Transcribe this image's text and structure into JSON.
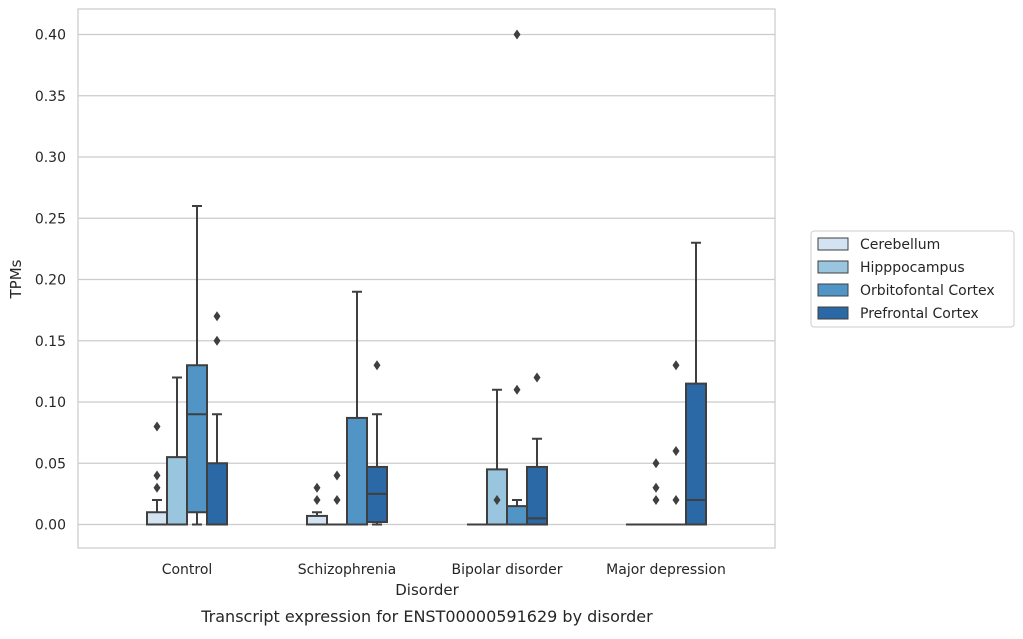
{
  "chart_data": {
    "type": "boxplot",
    "caption": "Transcript expression for ENST00000591629 by disorder",
    "xlabel": "Disorder",
    "ylabel": "TPMs",
    "ylim": [
      -0.02,
      0.42
    ],
    "yticks": [
      "0.00",
      "0.05",
      "0.10",
      "0.15",
      "0.20",
      "0.25",
      "0.30",
      "0.35",
      "0.40"
    ],
    "grid": "horizontal",
    "legend_position": "right",
    "categories": [
      "Control",
      "Schizophrenia",
      "Bipolar disorder",
      "Major depression"
    ],
    "series": [
      {
        "name": "Cerebellum",
        "color": "#d3e3f1",
        "boxes": [
          {
            "min": 0.0,
            "q1": 0.0,
            "median": 0.0,
            "q3": 0.01,
            "max": 0.02,
            "outliers": [
              0.03,
              0.04,
              0.08
            ]
          },
          {
            "min": 0.0,
            "q1": 0.0,
            "median": 0.0,
            "q3": 0.007,
            "max": 0.01,
            "outliers": [
              0.02,
              0.03
            ]
          },
          {
            "min": 0.0,
            "q1": 0.0,
            "median": 0.0,
            "q3": 0.0,
            "max": 0.0,
            "outliers": []
          },
          {
            "min": 0.0,
            "q1": 0.0,
            "median": 0.0,
            "q3": 0.0,
            "max": 0.0,
            "outliers": []
          }
        ]
      },
      {
        "name": "Hipppocampus",
        "color": "#9ac5df",
        "boxes": [
          {
            "min": 0.0,
            "q1": 0.0,
            "median": 0.0,
            "q3": 0.055,
            "max": 0.12,
            "outliers": []
          },
          {
            "min": 0.0,
            "q1": 0.0,
            "median": 0.0,
            "q3": 0.0,
            "max": 0.0,
            "outliers": [
              0.02,
              0.04
            ]
          },
          {
            "min": 0.0,
            "q1": 0.0,
            "median": 0.0,
            "q3": 0.045,
            "max": 0.11,
            "outliers": [
              0.02
            ]
          },
          {
            "min": 0.0,
            "q1": 0.0,
            "median": 0.0,
            "q3": 0.0,
            "max": 0.0,
            "outliers": [
              0.02,
              0.03,
              0.05
            ]
          }
        ]
      },
      {
        "name": "Orbitofontal Cortex",
        "color": "#5195c7",
        "boxes": [
          {
            "min": 0.0,
            "q1": 0.01,
            "median": 0.09,
            "q3": 0.13,
            "max": 0.26,
            "outliers": []
          },
          {
            "min": 0.0,
            "q1": 0.0,
            "median": 0.0,
            "q3": 0.087,
            "max": 0.19,
            "outliers": []
          },
          {
            "min": 0.0,
            "q1": 0.0,
            "median": 0.0,
            "q3": 0.015,
            "max": 0.02,
            "outliers": [
              0.11,
              0.4
            ]
          },
          {
            "min": 0.0,
            "q1": 0.0,
            "median": 0.0,
            "q3": 0.0,
            "max": 0.0,
            "outliers": [
              0.02,
              0.06,
              0.13
            ]
          }
        ]
      },
      {
        "name": "Prefrontal Cortex",
        "color": "#2b68a6",
        "boxes": [
          {
            "min": 0.0,
            "q1": 0.0,
            "median": 0.0,
            "q3": 0.05,
            "max": 0.09,
            "outliers": [
              0.15,
              0.17
            ]
          },
          {
            "min": 0.0,
            "q1": 0.002,
            "median": 0.025,
            "q3": 0.047,
            "max": 0.09,
            "outliers": [
              0.13
            ]
          },
          {
            "min": 0.0,
            "q1": 0.0,
            "median": 0.005,
            "q3": 0.047,
            "max": 0.07,
            "outliers": [
              0.12
            ]
          },
          {
            "min": 0.0,
            "q1": 0.0,
            "median": 0.02,
            "q3": 0.115,
            "max": 0.23,
            "outliers": []
          }
        ]
      }
    ]
  }
}
